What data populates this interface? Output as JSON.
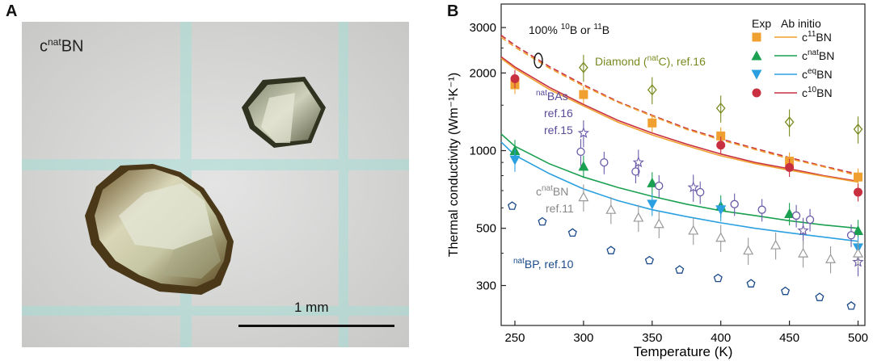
{
  "panel_a": {
    "letter": "A",
    "sample_label_base": "c",
    "sample_label_sup": "nat",
    "sample_label_tail": "BN",
    "scale_bar_label": "1 mm"
  },
  "panel_b": {
    "letter": "B"
  },
  "chart_data": {
    "type": "scatter",
    "xlabel": "Temperature (K)",
    "ylabel": "Thermal conductivity (Wm⁻¹K⁻¹)",
    "xlim": [
      240,
      505
    ],
    "ylim": [
      210,
      3700
    ],
    "yscale": "log",
    "x_ticks": [
      250,
      300,
      350,
      400,
      450,
      500
    ],
    "y_ticks": [
      300,
      500,
      1000,
      2000,
      3000
    ],
    "legend": {
      "placement": "top-right",
      "header_exp": "Exp",
      "header_theory": "Ab initio",
      "entries": [
        {
          "base": "c",
          "sup": "11",
          "tail": "BN",
          "color": "#f0a030",
          "marker": "square"
        },
        {
          "base": "c",
          "sup": "nat",
          "tail": "BN",
          "color": "#1aa050",
          "marker": "triangle-up"
        },
        {
          "base": "c",
          "sup": "eq",
          "tail": "BN",
          "color": "#2aa0e0",
          "marker": "triangle-down"
        },
        {
          "base": "c",
          "sup": "10",
          "tail": "BN",
          "color": "#c83040",
          "marker": "circle"
        }
      ]
    },
    "theory_curves": [
      {
        "key": "c10BN",
        "color": "#c83040",
        "dash": false,
        "x": [
          240,
          250,
          275,
          300,
          325,
          350,
          375,
          400,
          425,
          450,
          475,
          500
        ],
        "y": [
          2310,
          2110,
          1760,
          1510,
          1310,
          1170,
          1060,
          970,
          900,
          850,
          800,
          760
        ]
      },
      {
        "key": "c11BN",
        "color": "#f0a030",
        "dash": false,
        "x": [
          240,
          250,
          275,
          300,
          325,
          350,
          375,
          400,
          425,
          450,
          475,
          500
        ],
        "y": [
          2280,
          2080,
          1730,
          1490,
          1290,
          1150,
          1045,
          955,
          890,
          840,
          795,
          755
        ]
      },
      {
        "key": "isotope_pure_a",
        "color": "#c83040",
        "dash": true,
        "x": [
          240,
          250,
          275,
          300,
          325,
          350,
          375,
          400,
          425,
          450,
          475,
          500
        ],
        "y": [
          2800,
          2560,
          2120,
          1800,
          1550,
          1370,
          1220,
          1110,
          1020,
          940,
          870,
          810
        ]
      },
      {
        "key": "isotope_pure_b",
        "color": "#f0a030",
        "dash": true,
        "x": [
          240,
          250,
          275,
          300,
          325,
          350,
          375,
          400,
          425,
          450,
          475,
          500
        ],
        "y": [
          2750,
          2520,
          2090,
          1780,
          1540,
          1360,
          1210,
          1100,
          1010,
          930,
          865,
          800
        ]
      },
      {
        "key": "cnatBN",
        "color": "#1aa050",
        "dash": false,
        "x": [
          240,
          250,
          275,
          300,
          325,
          350,
          375,
          400,
          425,
          450,
          475,
          500
        ],
        "y": [
          1160,
          1040,
          890,
          790,
          720,
          665,
          620,
          585,
          560,
          535,
          515,
          500
        ]
      },
      {
        "key": "ceqBN",
        "color": "#2aa0e0",
        "dash": false,
        "x": [
          240,
          250,
          275,
          300,
          325,
          350,
          375,
          400,
          425,
          450,
          475,
          500
        ],
        "y": [
          1080,
          960,
          815,
          710,
          640,
          590,
          555,
          525,
          500,
          480,
          462,
          445
        ]
      }
    ],
    "exp_series": [
      {
        "key": "c11BN",
        "color": "#f0a030",
        "marker": "square",
        "x": [
          250,
          300,
          350,
          400,
          450,
          500
        ],
        "y": [
          1800,
          1650,
          1280,
          1140,
          910,
          790
        ],
        "err": [
          0.08,
          0.08,
          0.08,
          0.08,
          0.08,
          0.08
        ]
      },
      {
        "key": "c10BN",
        "color": "#c83040",
        "marker": "circle",
        "x": [
          250,
          400,
          450,
          500
        ],
        "y": [
          1900,
          1050,
          860,
          690
        ],
        "err": [
          0.08,
          0.08,
          0.08,
          0.08
        ]
      },
      {
        "key": "cnatBN",
        "color": "#1aa050",
        "marker": "triangle-up",
        "x": [
          250,
          300,
          350,
          400,
          450,
          500
        ],
        "y": [
          1000,
          870,
          750,
          610,
          570,
          490
        ],
        "err": [
          0.1,
          0.1,
          0.1,
          0.1,
          0.1,
          0.1
        ]
      },
      {
        "key": "ceqBN",
        "color": "#2aa0e0",
        "marker": "triangle-down",
        "x": [
          250,
          350,
          400,
          500
        ],
        "y": [
          920,
          620,
          590,
          420
        ],
        "err": [
          0.1,
          0.1,
          0.1,
          0.1
        ]
      },
      {
        "key": "diamond_natC",
        "color": "#7a8a20",
        "marker": "diamond",
        "x": [
          300,
          350,
          400,
          450,
          500
        ],
        "y": [
          2100,
          1720,
          1460,
          1290,
          1210
        ],
        "err": [
          0.12,
          0.12,
          0.12,
          0.12,
          0.12
        ]
      },
      {
        "key": "natBAs_ref16",
        "color": "#6a5aa8",
        "marker": "open-circle",
        "x": [
          298,
          315,
          338,
          355,
          385,
          410,
          430,
          455,
          465,
          495
        ],
        "y": [
          990,
          900,
          830,
          730,
          690,
          620,
          590,
          560,
          540,
          470
        ],
        "err": [
          0.12,
          0.1,
          0.1,
          0.1,
          0.1,
          0.1,
          0.1,
          0.1,
          0.1,
          0.1
        ]
      },
      {
        "key": "natBAs_ref15",
        "color": "#6a5aa8",
        "marker": "star",
        "x": [
          300,
          340,
          380,
          460,
          500
        ],
        "y": [
          1170,
          900,
          720,
          490,
          370
        ],
        "err": [
          0.12,
          0.12,
          0.12,
          0.12,
          0.12
        ]
      },
      {
        "key": "cnatBN_ref11",
        "color": "#999999",
        "marker": "open-triangle",
        "x": [
          300,
          320,
          340,
          355,
          380,
          400,
          420,
          440,
          460,
          480,
          500
        ],
        "y": [
          660,
          590,
          550,
          520,
          490,
          460,
          410,
          430,
          400,
          380,
          400
        ],
        "err": [
          0.12,
          0.12,
          0.12,
          0.12,
          0.12,
          0.12,
          0.12,
          0.12,
          0.12,
          0.12,
          0.12
        ]
      },
      {
        "key": "natBP_ref10",
        "color": "#1a4a8a",
        "marker": "pentagon",
        "x": [
          248,
          270,
          292,
          320,
          348,
          370,
          398,
          422,
          447,
          472,
          495
        ],
        "y": [
          610,
          530,
          480,
          410,
          375,
          345,
          320,
          305,
          285,
          270,
          250
        ],
        "err": [
          0,
          0,
          0,
          0,
          0,
          0,
          0,
          0,
          0,
          0,
          0
        ]
      }
    ],
    "annotations": {
      "isotope": {
        "text_a": "100% ",
        "sup_a": "10",
        "text_b": "B or ",
        "sup_b": "11",
        "text_c": "B",
        "color": "#111111"
      },
      "diamond": {
        "text_a": "Diamond (",
        "sup": "nat",
        "text_b": "C), ref.16",
        "color": "#7a8a20"
      },
      "bas": {
        "sup": "nat",
        "base": "BAs",
        "line2": "ref.16",
        "line3": "ref.15",
        "color": "#5a4a98"
      },
      "bn_ref": {
        "base": "c",
        "sup": "nat",
        "tail": "BN",
        "line2": "ref.11",
        "color": "#888888"
      },
      "bp": {
        "sup": "nat",
        "base": "BP, ref.10",
        "color": "#1a4a8a"
      }
    }
  }
}
